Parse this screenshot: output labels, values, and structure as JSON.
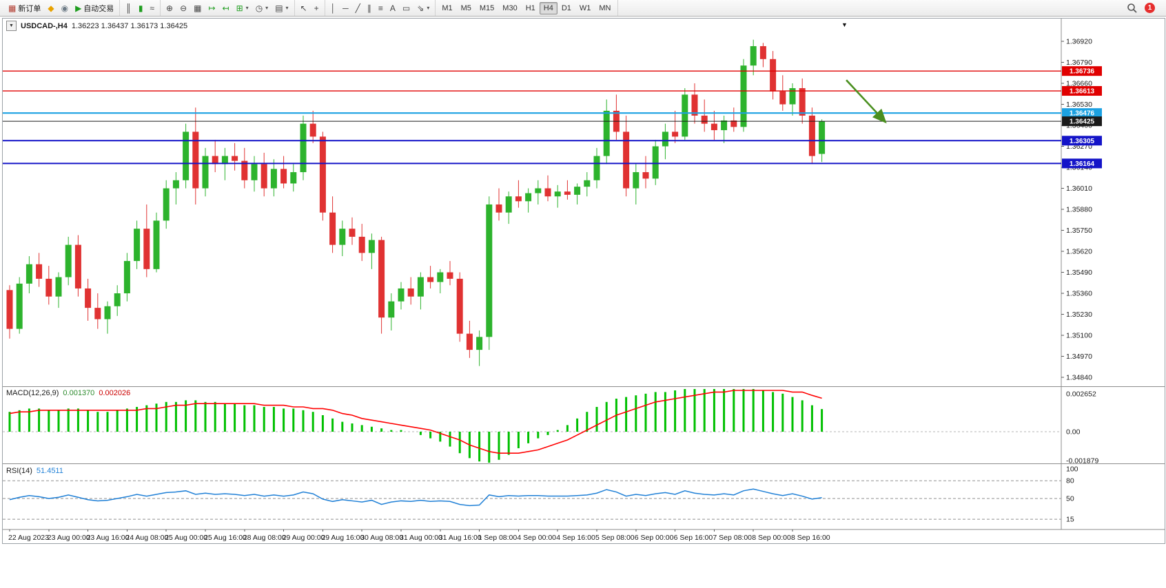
{
  "toolbar": {
    "new_order_label": "新订单",
    "auto_trading_label": "自动交易",
    "timeframes": [
      "M1",
      "M5",
      "M15",
      "M30",
      "H1",
      "H4",
      "D1",
      "W1",
      "MN"
    ],
    "active_timeframe": "H4",
    "notification_count": "1",
    "groups": [
      {
        "buttons": [
          {
            "name": "new-order",
            "glyph": "▦",
            "color": "#b03a2e",
            "label": "新订单"
          },
          {
            "name": "metaeditor",
            "glyph": "◆",
            "color": "#e8a200"
          },
          {
            "name": "market-watch",
            "glyph": "◉",
            "color": "#6d7b86"
          },
          {
            "name": "auto-trading",
            "glyph": "▶",
            "color": "#1f9d1f",
            "label": "自动交易"
          }
        ]
      },
      {
        "buttons": [
          {
            "name": "bar-chart",
            "glyph": "║"
          },
          {
            "name": "candlestick-chart",
            "glyph": "▮",
            "color": "#1f9d1f"
          },
          {
            "name": "line-chart",
            "glyph": "≈"
          }
        ]
      },
      {
        "buttons": [
          {
            "name": "zoom-in",
            "glyph": "⊕"
          },
          {
            "name": "zoom-out",
            "glyph": "⊖"
          },
          {
            "name": "tile-windows",
            "glyph": "▦"
          },
          {
            "name": "auto-scroll",
            "glyph": "↦",
            "color": "#1f9d1f"
          },
          {
            "name": "chart-shift",
            "glyph": "↤",
            "color": "#1f9d1f"
          },
          {
            "name": "indicators",
            "glyph": "⊞",
            "color": "#1f9d1f",
            "caret": true
          },
          {
            "name": "periods",
            "glyph": "◷",
            "caret": true
          },
          {
            "name": "templates",
            "glyph": "▤",
            "caret": true
          }
        ]
      },
      {
        "buttons": [
          {
            "name": "cursor",
            "glyph": "↖"
          },
          {
            "name": "crosshair",
            "glyph": "+"
          }
        ]
      },
      {
        "buttons": [
          {
            "name": "vertical-line",
            "glyph": "│"
          },
          {
            "name": "horizontal-line",
            "glyph": "─"
          },
          {
            "name": "trendline",
            "glyph": "╱"
          },
          {
            "name": "equidistant-channel",
            "glyph": "∥"
          },
          {
            "name": "fibonacci-retracement",
            "glyph": "≡"
          },
          {
            "name": "text",
            "glyph": "A"
          },
          {
            "name": "text-label",
            "glyph": "▭"
          },
          {
            "name": "arrows",
            "glyph": "⇘",
            "caret": true
          }
        ]
      }
    ]
  },
  "chart_header": {
    "collapse_icon": "▼",
    "symbol_period": "USDCAD-,H4",
    "ohlc": "1.36223 1.36437 1.36173 1.36425",
    "dropdown_marker": "▼"
  },
  "indicators": {
    "macd_label": "MACD(12,26,9)",
    "macd_value_main": "0.001370",
    "macd_value_signal": "0.002026",
    "rsi_label": "RSI(14)",
    "rsi_value": "51.4511"
  },
  "chart_data": {
    "type": "candlestick",
    "symbol": "USDCAD",
    "period": "H4",
    "last_ohlc": {
      "open": 1.36223,
      "high": 1.36437,
      "low": 1.36173,
      "close": 1.36425
    },
    "colors": {
      "bull": "#2db32d",
      "bear": "#e03232",
      "macd_hist": "#00c000",
      "macd_signal": "#ff0000",
      "rsi_line": "#1e7fd6",
      "axis_text": "#1a1a1a",
      "level_red": "#e00000",
      "level_blue": "#1414c8",
      "level_cyan": "#1ba1e2",
      "bid_line": "#1a1a1a",
      "arrow": "#4a8f1f"
    },
    "price_axis": {
      "max": 1.3692,
      "min": 1.3484,
      "ticks": [
        1.3692,
        1.3679,
        1.3666,
        1.3653,
        1.364,
        1.3627,
        1.3614,
        1.3601,
        1.3588,
        1.3575,
        1.3562,
        1.3549,
        1.3536,
        1.3523,
        1.351,
        1.3497,
        1.3484
      ]
    },
    "x_axis_labels": [
      "22 Aug 2023",
      "23 Aug 00:00",
      "23 Aug 16:00",
      "24 Aug 08:00",
      "25 Aug 00:00",
      "25 Aug 16:00",
      "28 Aug 08:00",
      "29 Aug 00:00",
      "29 Aug 16:00",
      "30 Aug 08:00",
      "31 Aug 00:00",
      "31 Aug 16:00",
      "1 Sep 08:00",
      "4 Sep 00:00",
      "4 Sep 16:00",
      "5 Sep 08:00",
      "6 Sep 00:00",
      "6 Sep 16:00",
      "7 Sep 08:00",
      "8 Sep 00:00",
      "8 Sep 16:00"
    ],
    "bars_per_label": 4,
    "levels": [
      {
        "price": 1.36736,
        "label": "1.36736",
        "color": "#e00000",
        "width": 1.4
      },
      {
        "price": 1.36613,
        "label": "1.36613",
        "color": "#e00000",
        "width": 1.4
      },
      {
        "price": 1.36476,
        "label": "1.36476",
        "color": "#1ba1e2",
        "width": 2.2
      },
      {
        "price": 1.36425,
        "label": "1.36425",
        "color": "#1a1a1a",
        "width": 1.0
      },
      {
        "price": 1.36305,
        "label": "1.36305",
        "color": "#1414c8",
        "width": 2.0
      },
      {
        "price": 1.36164,
        "label": "1.36164",
        "color": "#1414c8",
        "width": 2.0
      }
    ],
    "trend_arrow": {
      "from_bar": 85.5,
      "from_price": 1.3668,
      "to_bar": 89.5,
      "to_price": 1.3642,
      "color": "#4a8f1f"
    },
    "candles": [
      [
        1.3538,
        1.3541,
        1.3508,
        1.3514
      ],
      [
        1.3514,
        1.3546,
        1.3511,
        1.3542
      ],
      [
        1.3542,
        1.3559,
        1.3536,
        1.3554
      ],
      [
        1.3554,
        1.3561,
        1.354,
        1.3545
      ],
      [
        1.3545,
        1.3553,
        1.3529,
        1.3534
      ],
      [
        1.3534,
        1.3549,
        1.3527,
        1.3546
      ],
      [
        1.3546,
        1.3571,
        1.3541,
        1.3566
      ],
      [
        1.3566,
        1.3572,
        1.3534,
        1.3539
      ],
      [
        1.3539,
        1.3545,
        1.3519,
        1.3527
      ],
      [
        1.3527,
        1.3536,
        1.3514,
        1.352
      ],
      [
        1.352,
        1.3531,
        1.3511,
        1.3528
      ],
      [
        1.3528,
        1.3541,
        1.3522,
        1.3536
      ],
      [
        1.3536,
        1.3561,
        1.3531,
        1.3556
      ],
      [
        1.3556,
        1.3581,
        1.3551,
        1.3576
      ],
      [
        1.3576,
        1.3591,
        1.3546,
        1.3551
      ],
      [
        1.3551,
        1.3586,
        1.3549,
        1.3581
      ],
      [
        1.3581,
        1.3606,
        1.3576,
        1.3601
      ],
      [
        1.3601,
        1.3611,
        1.3591,
        1.3606
      ],
      [
        1.3606,
        1.3641,
        1.3601,
        1.3636
      ],
      [
        1.3636,
        1.3651,
        1.3591,
        1.3601
      ],
      [
        1.3601,
        1.3626,
        1.3596,
        1.3621
      ],
      [
        1.3621,
        1.3631,
        1.3611,
        1.3616
      ],
      [
        1.3616,
        1.3626,
        1.3606,
        1.3621
      ],
      [
        1.3621,
        1.3629,
        1.3612,
        1.3618
      ],
      [
        1.3618,
        1.3626,
        1.3601,
        1.3606
      ],
      [
        1.3606,
        1.3621,
        1.3599,
        1.3616
      ],
      [
        1.3616,
        1.3623,
        1.3596,
        1.3601
      ],
      [
        1.3601,
        1.3619,
        1.3596,
        1.3613
      ],
      [
        1.3613,
        1.3621,
        1.3601,
        1.3604
      ],
      [
        1.3604,
        1.3616,
        1.3599,
        1.3611
      ],
      [
        1.3611,
        1.3646,
        1.3606,
        1.3641
      ],
      [
        1.3641,
        1.3649,
        1.3629,
        1.3633
      ],
      [
        1.3633,
        1.3636,
        1.3581,
        1.3586
      ],
      [
        1.3586,
        1.3596,
        1.3561,
        1.3566
      ],
      [
        1.3566,
        1.3581,
        1.3559,
        1.3576
      ],
      [
        1.3576,
        1.3583,
        1.3566,
        1.3571
      ],
      [
        1.3571,
        1.3579,
        1.3556,
        1.3561
      ],
      [
        1.3561,
        1.3573,
        1.3551,
        1.3569
      ],
      [
        1.3569,
        1.3571,
        1.3511,
        1.3521
      ],
      [
        1.3521,
        1.3536,
        1.3513,
        1.3531
      ],
      [
        1.3531,
        1.3543,
        1.3526,
        1.3539
      ],
      [
        1.3539,
        1.3546,
        1.3529,
        1.3534
      ],
      [
        1.3534,
        1.3549,
        1.3526,
        1.3546
      ],
      [
        1.3546,
        1.3553,
        1.3539,
        1.3543
      ],
      [
        1.3543,
        1.3551,
        1.3536,
        1.3549
      ],
      [
        1.3549,
        1.3556,
        1.3541,
        1.3545
      ],
      [
        1.3545,
        1.3549,
        1.3506,
        1.3511
      ],
      [
        1.3511,
        1.3519,
        1.3496,
        1.3501
      ],
      [
        1.3501,
        1.3513,
        1.3491,
        1.3509
      ],
      [
        1.3509,
        1.3596,
        1.3501,
        1.3591
      ],
      [
        1.3591,
        1.3601,
        1.3581,
        1.3586
      ],
      [
        1.3586,
        1.3599,
        1.3579,
        1.3596
      ],
      [
        1.3596,
        1.3606,
        1.3589,
        1.3593
      ],
      [
        1.3593,
        1.3601,
        1.3586,
        1.3598
      ],
      [
        1.3598,
        1.3606,
        1.3591,
        1.3601
      ],
      [
        1.3601,
        1.3609,
        1.3593,
        1.3596
      ],
      [
        1.3596,
        1.3603,
        1.3589,
        1.3599
      ],
      [
        1.3599,
        1.3606,
        1.3594,
        1.3597
      ],
      [
        1.3597,
        1.3604,
        1.3591,
        1.3602
      ],
      [
        1.3602,
        1.3611,
        1.3596,
        1.3606
      ],
      [
        1.3606,
        1.3626,
        1.3601,
        1.3621
      ],
      [
        1.3621,
        1.3656,
        1.3616,
        1.3649
      ],
      [
        1.3649,
        1.3659,
        1.3631,
        1.3636
      ],
      [
        1.3636,
        1.3646,
        1.3596,
        1.3601
      ],
      [
        1.3601,
        1.3616,
        1.3591,
        1.3611
      ],
      [
        1.3611,
        1.3621,
        1.3601,
        1.3607
      ],
      [
        1.3607,
        1.3631,
        1.3603,
        1.3627
      ],
      [
        1.3627,
        1.3641,
        1.3619,
        1.3636
      ],
      [
        1.3636,
        1.3649,
        1.3629,
        1.3633
      ],
      [
        1.3633,
        1.3663,
        1.3631,
        1.3659
      ],
      [
        1.3659,
        1.3666,
        1.3641,
        1.3646
      ],
      [
        1.3646,
        1.3656,
        1.3636,
        1.3641
      ],
      [
        1.3641,
        1.3649,
        1.3631,
        1.3637
      ],
      [
        1.3637,
        1.3646,
        1.3629,
        1.3643
      ],
      [
        1.3643,
        1.3651,
        1.3636,
        1.3639
      ],
      [
        1.3639,
        1.3681,
        1.3636,
        1.3677
      ],
      [
        1.3677,
        1.3693,
        1.3671,
        1.3689
      ],
      [
        1.3689,
        1.3691,
        1.3676,
        1.3681
      ],
      [
        1.3681,
        1.3686,
        1.3656,
        1.3661
      ],
      [
        1.3661,
        1.3671,
        1.3649,
        1.3653
      ],
      [
        1.3653,
        1.3666,
        1.3646,
        1.3663
      ],
      [
        1.3663,
        1.3669,
        1.3641,
        1.3646
      ],
      [
        1.3646,
        1.3651,
        1.3616,
        1.3621
      ],
      [
        1.36223,
        1.36437,
        1.36173,
        1.36425
      ]
    ],
    "macd": {
      "axis_labels": [
        {
          "v": 0.002652,
          "t": "0.002652"
        },
        {
          "v": 0,
          "t": "0.00"
        },
        {
          "v": -0.001879,
          "t": "-0.001879"
        }
      ],
      "histogram": [
        0.0012,
        0.0013,
        0.0014,
        0.0014,
        0.0013,
        0.0013,
        0.0014,
        0.0014,
        0.0013,
        0.0012,
        0.0012,
        0.0013,
        0.0014,
        0.0015,
        0.0016,
        0.0017,
        0.0018,
        0.0018,
        0.0019,
        0.0019,
        0.0018,
        0.0018,
        0.0017,
        0.0017,
        0.0016,
        0.0016,
        0.0015,
        0.0015,
        0.0014,
        0.0014,
        0.0013,
        0.0012,
        0.001,
        0.0008,
        0.0006,
        0.0005,
        0.0004,
        0.0003,
        0.0002,
        0.0001,
        0.0001,
        0.0,
        -0.0002,
        -0.0004,
        -0.0006,
        -0.0009,
        -0.0013,
        -0.0016,
        -0.0018,
        -0.0019,
        -0.0017,
        -0.0014,
        -0.001,
        -0.0007,
        -0.0004,
        -0.0002,
        0.0001,
        0.0004,
        0.0008,
        0.0012,
        0.0015,
        0.0018,
        0.002,
        0.0021,
        0.0022,
        0.0023,
        0.0024,
        0.0024,
        0.0025,
        0.0026,
        0.00265,
        0.00265,
        0.0026,
        0.0026,
        0.00265,
        0.00265,
        0.0026,
        0.0025,
        0.0024,
        0.0023,
        0.0021,
        0.0019,
        0.0016,
        0.00137
      ],
      "signal": [
        0.0011,
        0.0012,
        0.0012,
        0.0013,
        0.0013,
        0.0013,
        0.0013,
        0.0013,
        0.0013,
        0.0013,
        0.0013,
        0.0013,
        0.0013,
        0.0013,
        0.0014,
        0.0014,
        0.0015,
        0.0016,
        0.0016,
        0.0017,
        0.0017,
        0.0017,
        0.0017,
        0.0017,
        0.0017,
        0.0017,
        0.0016,
        0.0016,
        0.0016,
        0.0015,
        0.0015,
        0.0014,
        0.0014,
        0.0013,
        0.0011,
        0.001,
        0.0008,
        0.0007,
        0.0006,
        0.0005,
        0.0004,
        0.0003,
        0.0002,
        0.0001,
        -0.0001,
        -0.0003,
        -0.0005,
        -0.0008,
        -0.001,
        -0.0012,
        -0.0013,
        -0.0013,
        -0.0013,
        -0.0012,
        -0.0011,
        -0.0009,
        -0.0007,
        -0.0005,
        -0.0002,
        0.0001,
        0.0004,
        0.0007,
        0.001,
        0.0012,
        0.0014,
        0.0016,
        0.0018,
        0.0019,
        0.002,
        0.0021,
        0.0022,
        0.0023,
        0.0024,
        0.0024,
        0.0025,
        0.0025,
        0.0025,
        0.0025,
        0.0025,
        0.0025,
        0.0024,
        0.0024,
        0.0022,
        0.002026
      ]
    },
    "rsi": {
      "axis_labels": [
        {
          "v": 100,
          "t": "100"
        },
        {
          "v": 80,
          "t": "80"
        },
        {
          "v": 50,
          "t": "50"
        },
        {
          "v": 15,
          "t": "15"
        }
      ],
      "dashed_levels": [
        80,
        50,
        15
      ],
      "values": [
        48,
        52,
        55,
        53,
        50,
        52,
        56,
        52,
        48,
        46,
        47,
        50,
        53,
        57,
        54,
        57,
        60,
        61,
        63,
        57,
        59,
        57,
        58,
        57,
        55,
        57,
        54,
        56,
        54,
        56,
        61,
        58,
        49,
        45,
        48,
        46,
        44,
        47,
        40,
        44,
        46,
        45,
        47,
        45,
        46,
        45,
        40,
        38,
        39,
        56,
        53,
        55,
        54,
        55,
        55,
        54,
        54,
        54,
        55,
        56,
        59,
        65,
        61,
        54,
        57,
        55,
        58,
        60,
        57,
        63,
        59,
        57,
        56,
        58,
        56,
        63,
        66,
        62,
        58,
        55,
        58,
        54,
        49,
        51.4511
      ]
    }
  }
}
